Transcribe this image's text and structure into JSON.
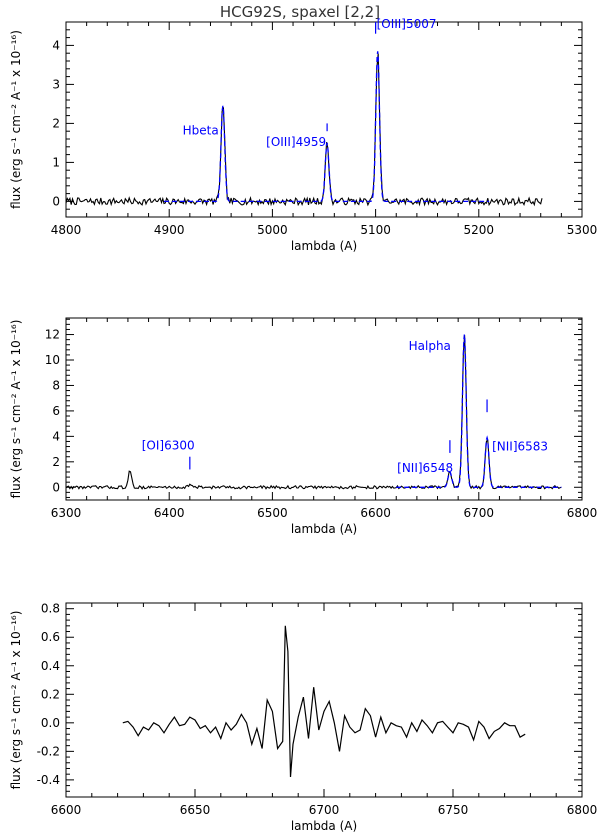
{
  "page_title": "HCG92S, spaxel [2,2]",
  "colors": {
    "data": "#000000",
    "fit": "#0000ff",
    "label": "#0000ff"
  },
  "chart_data": [
    {
      "type": "line",
      "xlabel": "lambda (A)",
      "ylabel": "flux (erg s⁻¹ cm⁻² A⁻¹ x 10⁻¹⁶)",
      "xlim": [
        4800,
        5300
      ],
      "ylim": [
        -0.4,
        4.6
      ],
      "xticks": [
        4800,
        4900,
        5000,
        5100,
        5200,
        5300
      ],
      "yticks": [
        0,
        1,
        2,
        3,
        4
      ],
      "continuum": 0.0,
      "noise": 0.09,
      "data_range": [
        4800,
        5262
      ],
      "fit_range": [
        4895,
        5210
      ],
      "lines": [
        {
          "label": "Hbeta",
          "center": 4952,
          "amp": 2.45,
          "sigma": 1.8
        },
        {
          "label": "[OIII]4959",
          "center": 5053,
          "amp": 1.5,
          "sigma": 1.8
        },
        {
          "label": "[OIII]5007",
          "center": 5102,
          "amp": 3.85,
          "sigma": 1.8
        }
      ],
      "annotations": [
        {
          "text": "Hbeta",
          "x": 4948,
          "y": 1.72,
          "anchor": "end"
        },
        {
          "text": "[OIII]4959",
          "x": 5023,
          "y": 1.42,
          "anchor": "middle"
        },
        {
          "text": "[OIII]5007",
          "x": 5130,
          "y": 4.45,
          "anchor": "middle"
        }
      ],
      "markers": [
        {
          "x": 5053,
          "y1": 1.8,
          "y2": 2.0
        },
        {
          "x": 5100,
          "y1": 4.3,
          "y2": 4.6
        }
      ],
      "grid": false
    },
    {
      "type": "line",
      "xlabel": "lambda (A)",
      "ylabel": "flux (erg s⁻¹ cm⁻² A⁻¹ x 10⁻¹⁶)",
      "xlim": [
        6300,
        6800
      ],
      "ylim": [
        -1.0,
        13.3
      ],
      "xticks": [
        6300,
        6400,
        6500,
        6600,
        6700,
        6800
      ],
      "yticks": [
        0,
        2,
        4,
        6,
        8,
        10,
        12
      ],
      "continuum": 0.0,
      "noise": 0.12,
      "data_range": [
        6300,
        6780
      ],
      "fit_range": [
        6620,
        6780
      ],
      "lines": [
        {
          "label": "[NII]6548",
          "center": 6672,
          "amp": 1.2,
          "sigma": 1.8
        },
        {
          "label": "Halpha",
          "center": 6686,
          "amp": 12.0,
          "sigma": 1.8
        },
        {
          "label": "[NII]6583",
          "center": 6708,
          "amp": 3.9,
          "sigma": 1.8
        }
      ],
      "extra_features": [
        {
          "center": 6362,
          "amp": 1.3,
          "sigma": 1.5
        },
        {
          "center": 6420,
          "amp": 0.25,
          "sigma": 1.5
        }
      ],
      "annotations": [
        {
          "text": "[OI]6300",
          "x": 6399,
          "y": 2.95,
          "anchor": "middle"
        },
        {
          "text": "Halpha",
          "x": 6673,
          "y": 10.8,
          "anchor": "end"
        },
        {
          "text": "[NII]6548",
          "x": 6648,
          "y": 1.2,
          "anchor": "middle"
        },
        {
          "text": "[NII]6583",
          "x": 6740,
          "y": 2.9,
          "anchor": "middle"
        }
      ],
      "markers": [
        {
          "x": 6420,
          "y1": 1.4,
          "y2": 2.4
        },
        {
          "x": 6672,
          "y1": 2.7,
          "y2": 3.7
        },
        {
          "x": 6708,
          "y1": 5.9,
          "y2": 6.9
        }
      ],
      "grid": false
    },
    {
      "type": "line",
      "xlabel": "lambda (A)",
      "ylabel": "flux (erg s⁻¹ cm⁻² A⁻¹ x 10⁻¹⁶)",
      "xlim": [
        6600,
        6800
      ],
      "ylim": [
        -0.52,
        0.84
      ],
      "xticks": [
        6600,
        6650,
        6700,
        6750,
        6800
      ],
      "yticks": [
        -0.4,
        -0.2,
        0.0,
        0.2,
        0.4,
        0.6,
        0.8
      ],
      "series": [
        {
          "x": [
            6622,
            6624,
            6626,
            6628,
            6630,
            6632,
            6634,
            6636,
            6638,
            6640,
            6642,
            6644,
            6646,
            6648,
            6650,
            6652,
            6654,
            6656,
            6658,
            6660,
            6662,
            6664,
            6666,
            6668,
            6670,
            6672,
            6674,
            6676,
            6678,
            6680,
            6682,
            6684,
            6685,
            6686,
            6687,
            6688,
            6690,
            6692,
            6694,
            6696,
            6698,
            6700,
            6702,
            6704,
            6706,
            6708,
            6710,
            6712,
            6714,
            6716,
            6718,
            6720,
            6722,
            6724,
            6726,
            6728,
            6730,
            6732,
            6734,
            6736,
            6738,
            6740,
            6742,
            6744,
            6746,
            6748,
            6750,
            6752,
            6754,
            6756,
            6758,
            6760,
            6762,
            6764,
            6766,
            6768,
            6770,
            6772,
            6774,
            6776,
            6778
          ],
          "y": [
            0.0,
            0.01,
            -0.03,
            -0.09,
            -0.03,
            -0.05,
            0.0,
            -0.02,
            -0.07,
            -0.01,
            0.04,
            -0.02,
            -0.01,
            0.04,
            0.02,
            -0.04,
            -0.02,
            -0.07,
            -0.03,
            -0.11,
            0.0,
            -0.05,
            -0.01,
            0.06,
            0.0,
            -0.15,
            -0.04,
            -0.18,
            0.16,
            0.08,
            -0.18,
            -0.13,
            0.68,
            0.5,
            -0.38,
            -0.15,
            0.04,
            0.18,
            -0.11,
            0.25,
            -0.05,
            0.08,
            0.15,
            0.0,
            -0.2,
            0.05,
            -0.03,
            -0.07,
            -0.05,
            0.1,
            0.05,
            -0.1,
            0.04,
            -0.07,
            0.0,
            -0.02,
            -0.03,
            -0.1,
            0.0,
            -0.06,
            0.02,
            -0.02,
            -0.07,
            0.0,
            0.01,
            -0.03,
            -0.07,
            0.0,
            -0.01,
            -0.03,
            -0.12,
            0.01,
            -0.03,
            -0.11,
            -0.06,
            -0.04,
            0.0,
            -0.02,
            -0.02,
            -0.1,
            -0.08
          ]
        }
      ],
      "grid": false
    }
  ]
}
